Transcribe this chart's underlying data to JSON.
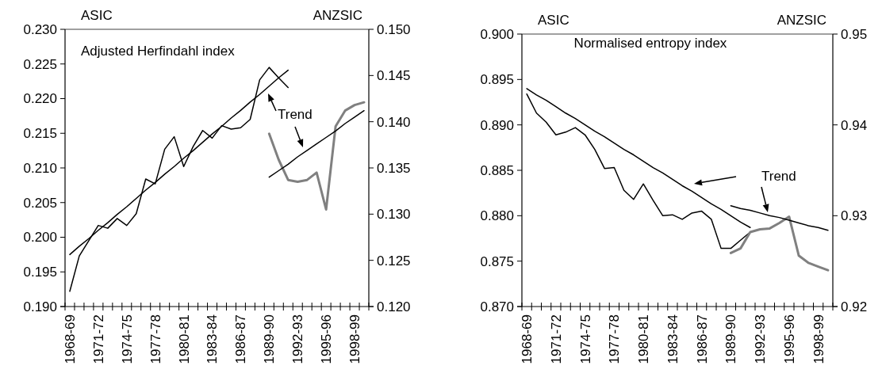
{
  "chart_data": [
    {
      "type": "line",
      "title": "Adjusted Herfindahl index",
      "ylabel": "ASIC",
      "y2label": "ANZSIC",
      "annotations": [
        "Trend"
      ],
      "categories": [
        "1968-69",
        null,
        null,
        "1971-72",
        null,
        null,
        "1974-75",
        null,
        null,
        "1977-78",
        null,
        null,
        "1980-81",
        null,
        null,
        "1983-84",
        null,
        null,
        "1986-87",
        null,
        null,
        "1989-90",
        null,
        null,
        "1992-93",
        null,
        null,
        "1995-96",
        null,
        null,
        "1998-99",
        null
      ],
      "ylim": [
        0.19,
        0.23
      ],
      "yticks": [
        {
          "value": 0.19,
          "label": "0.190"
        },
        {
          "value": 0.195,
          "label": "0.195"
        },
        {
          "value": 0.2,
          "label": "0.200"
        },
        {
          "value": 0.205,
          "label": "0.205"
        },
        {
          "value": 0.21,
          "label": "0.210"
        },
        {
          "value": 0.215,
          "label": "0.215"
        },
        {
          "value": 0.22,
          "label": "0.220"
        },
        {
          "value": 0.225,
          "label": "0.225"
        },
        {
          "value": 0.23,
          "label": "0.230"
        }
      ],
      "y2lim": [
        0.12,
        0.15
      ],
      "y2ticks": [
        {
          "value": 0.12,
          "label": "0.120"
        },
        {
          "value": 0.125,
          "label": "0.125"
        },
        {
          "value": 0.13,
          "label": "0.130"
        },
        {
          "value": 0.135,
          "label": "0.135"
        },
        {
          "value": 0.14,
          "label": "0.140"
        },
        {
          "value": 0.145,
          "label": "0.145"
        },
        {
          "value": 0.15,
          "label": "0.150"
        }
      ],
      "series": [
        {
          "color": "#000000",
          "values": [
            0.1922,
            0.1973,
            0.1995,
            0.2017,
            0.2013,
            0.2027,
            0.2017,
            0.2034,
            0.2084,
            0.2077,
            0.2127,
            0.2145,
            0.2102,
            0.2131,
            0.2154,
            0.2143,
            0.2161,
            0.2156,
            0.2158,
            0.217,
            0.2227,
            0.2245,
            0.223,
            0.2216,
            null,
            null,
            null,
            null,
            null,
            null,
            null,
            null
          ]
        },
        {
          "color": "#000000",
          "values": [
            0.1975,
            0.1987,
            0.1998,
            0.201,
            0.2021,
            0.2033,
            0.2044,
            0.2056,
            0.2068,
            0.2079,
            0.2091,
            0.2102,
            0.2114,
            0.2125,
            0.2137,
            0.2149,
            0.216,
            0.2172,
            0.2183,
            0.2195,
            0.2206,
            0.2218,
            0.223,
            0.2241,
            null,
            null,
            null,
            null,
            null,
            null,
            null,
            null
          ]
        },
        {
          "color": "#808080",
          "axis": "y2",
          "values": [
            null,
            null,
            null,
            null,
            null,
            null,
            null,
            null,
            null,
            null,
            null,
            null,
            null,
            null,
            null,
            null,
            null,
            null,
            null,
            null,
            null,
            0.1387,
            0.1359,
            0.1337,
            0.1335,
            0.1337,
            0.1345,
            0.1305,
            0.1395,
            0.1412,
            0.1418,
            0.1421
          ]
        },
        {
          "color": "#000000",
          "axis": "y2",
          "values": [
            null,
            null,
            null,
            null,
            null,
            null,
            null,
            null,
            null,
            null,
            null,
            null,
            null,
            null,
            null,
            null,
            null,
            null,
            null,
            null,
            null,
            0.134,
            0.1347,
            0.1354,
            0.1362,
            0.1369,
            0.1376,
            0.1383,
            0.139,
            0.1398,
            0.1405,
            0.1412
          ]
        }
      ]
    },
    {
      "type": "line",
      "title": "Normalised entropy index",
      "ylabel": "ASIC",
      "y2label": "ANZSIC",
      "annotations": [
        "Trend"
      ],
      "categories": [
        "1968-69",
        null,
        null,
        "1971-72",
        null,
        null,
        "1974-75",
        null,
        null,
        "1977-78",
        null,
        null,
        "1980-81",
        null,
        null,
        "1983-84",
        null,
        null,
        "1986-87",
        null,
        null,
        "1989-90",
        null,
        null,
        "1992-93",
        null,
        null,
        "1995-96",
        null,
        null,
        "1998-99",
        null
      ],
      "ylim": [
        0.87,
        0.9
      ],
      "yticks": [
        {
          "value": 0.87,
          "label": "0.870"
        },
        0.875,
        {
          "value": 0.88,
          "label": "0.880"
        },
        0.885,
        {
          "value": 0.89,
          "label": "0.890"
        },
        0.895,
        {
          "value": 0.9,
          "label": "0.900"
        }
      ],
      "y2lim": [
        0.92,
        0.95
      ],
      "y2ticks": [
        0.92,
        0.93,
        0.94,
        0.95
      ],
      "series": [
        {
          "color": "#000000",
          "values": [
            0.8934,
            0.8913,
            0.8903,
            0.8889,
            0.8892,
            0.8897,
            0.8889,
            0.8873,
            0.8852,
            0.8853,
            0.8828,
            0.8818,
            0.8835,
            0.8817,
            0.88,
            0.8801,
            0.8796,
            0.8803,
            0.8805,
            0.8796,
            0.8764,
            0.8764,
            0.8773,
            0.8782,
            null,
            null,
            null,
            null,
            null,
            null,
            null,
            null
          ]
        },
        {
          "color": "#000000",
          "values": [
            0.894,
            0.8933,
            0.8927,
            0.892,
            0.8913,
            0.8907,
            0.89,
            0.8893,
            0.8887,
            0.888,
            0.8873,
            0.8867,
            0.886,
            0.8853,
            0.8847,
            0.884,
            0.8833,
            0.8827,
            0.882,
            0.8813,
            0.8807,
            0.88,
            0.8793,
            0.8787,
            null,
            null,
            null,
            null,
            null,
            null,
            null,
            null
          ]
        },
        {
          "color": "#808080",
          "axis": "y2",
          "values": [
            null,
            null,
            null,
            null,
            null,
            null,
            null,
            null,
            null,
            null,
            null,
            null,
            null,
            null,
            null,
            null,
            null,
            null,
            null,
            null,
            null,
            0.9259,
            0.9264,
            0.9282,
            0.9285,
            0.9286,
            0.9292,
            0.9299,
            0.9256,
            0.9248,
            0.9244,
            0.924
          ]
        },
        {
          "color": "#000000",
          "axis": "y2",
          "values": [
            null,
            null,
            null,
            null,
            null,
            null,
            null,
            null,
            null,
            null,
            null,
            null,
            null,
            null,
            null,
            null,
            null,
            null,
            null,
            null,
            null,
            0.9311,
            0.9308,
            0.9306,
            0.9303,
            0.93,
            0.9298,
            0.9295,
            0.9292,
            0.9289,
            0.9287,
            0.9284
          ]
        }
      ]
    }
  ]
}
